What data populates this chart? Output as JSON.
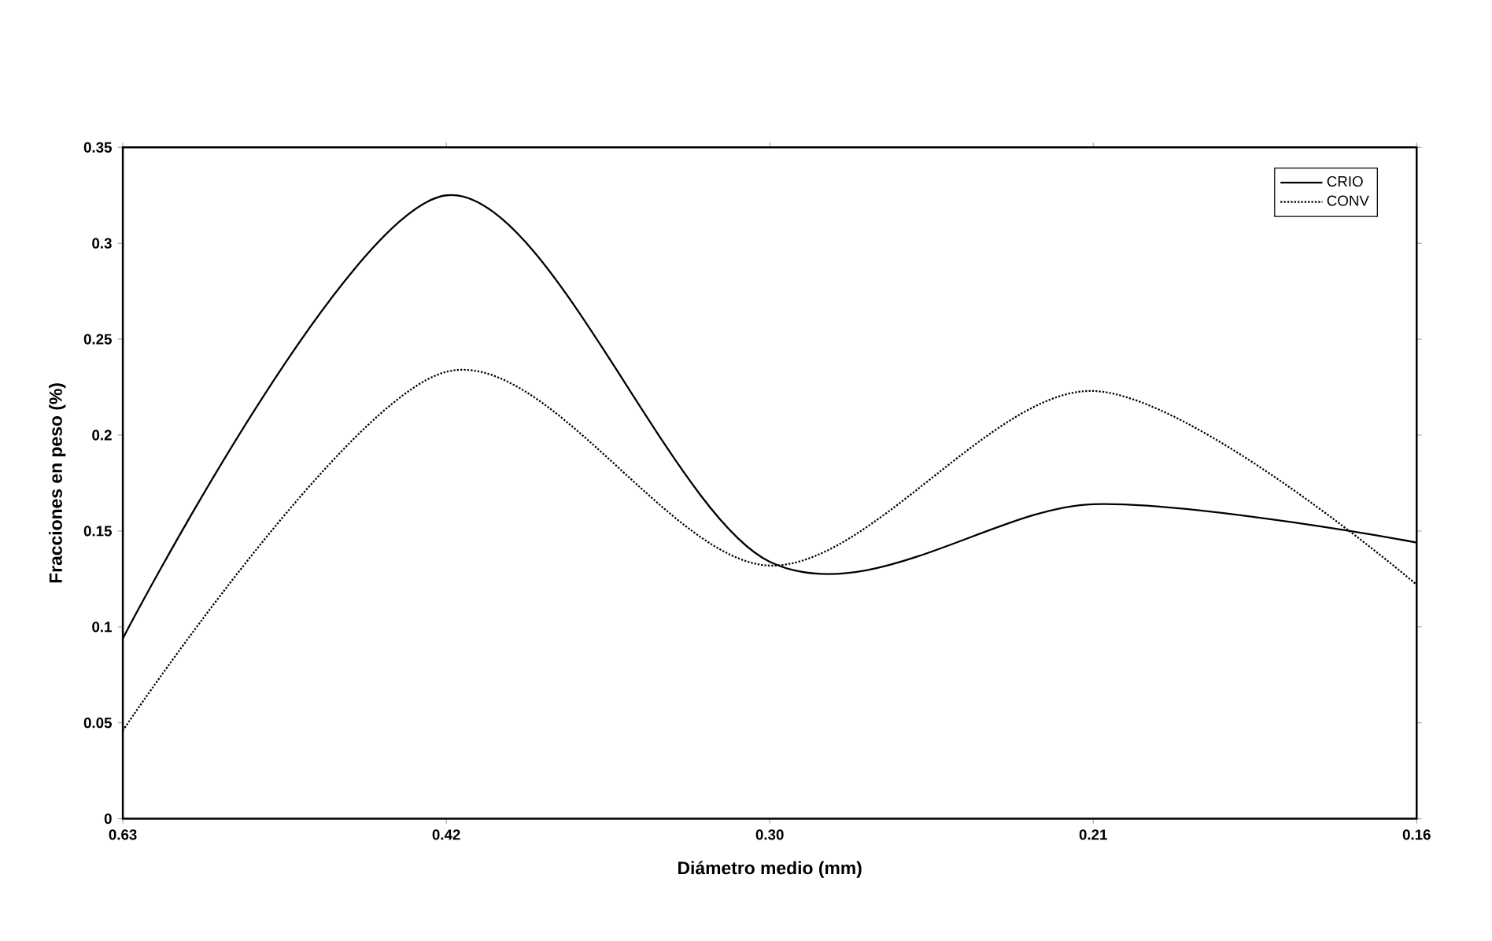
{
  "chart_data": {
    "type": "line",
    "xlabel": "Diámetro medio (mm)",
    "ylabel": "Fracciones en peso (%)",
    "categories": [
      "0.63",
      "0.42",
      "0.30",
      "0.21",
      "0.16"
    ],
    "series": [
      {
        "name": "CRIO",
        "color": "#000000",
        "line_style": "solid",
        "values": [
          0.094,
          0.325,
          0.134,
          0.164,
          0.144
        ]
      },
      {
        "name": "CONV",
        "color": "#000000",
        "line_style": "dotted",
        "values": [
          0.046,
          0.233,
          0.132,
          0.223,
          0.122
        ]
      }
    ],
    "ylim": [
      0,
      0.35
    ],
    "yticks": [
      0,
      0.05,
      0.1,
      0.15,
      0.2,
      0.25,
      0.3,
      0.35
    ],
    "legend": "top right",
    "grid": false,
    "marker": "none"
  }
}
